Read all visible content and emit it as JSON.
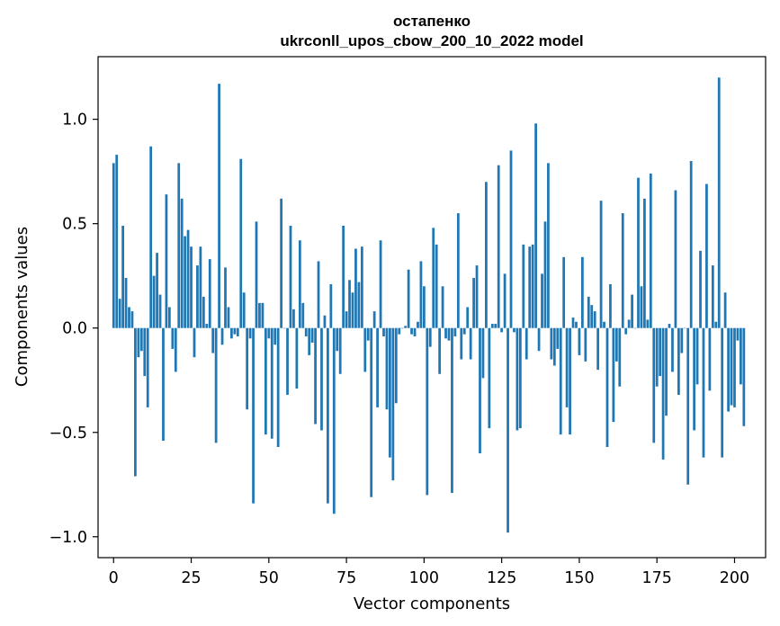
{
  "chart_data": {
    "type": "bar",
    "title": "остапенко",
    "subtitle": "ukrconll_upos_cbow_200_10_2022 model",
    "xlabel": "Vector components",
    "ylabel": "Components values",
    "xlim": [
      -5,
      210
    ],
    "ylim": [
      -1.1,
      1.3
    ],
    "xticks": [
      0,
      25,
      50,
      75,
      100,
      125,
      150,
      175,
      200
    ],
    "xtick_labels": [
      "0",
      "25",
      "50",
      "75",
      "100",
      "125",
      "150",
      "175",
      "200"
    ],
    "yticks": [
      -1.0,
      -0.5,
      0.0,
      0.5,
      1.0
    ],
    "ytick_labels": [
      "−1.0",
      "−0.5",
      "0.0",
      "0.5",
      "1.0"
    ],
    "grid": false,
    "legend": "none",
    "color": "#1f77b4",
    "values": [
      0.79,
      0.83,
      0.14,
      0.49,
      0.24,
      0.1,
      0.08,
      -0.71,
      -0.14,
      -0.11,
      -0.23,
      -0.38,
      0.87,
      0.25,
      0.36,
      0.16,
      -0.54,
      0.64,
      0.1,
      -0.1,
      -0.21,
      0.79,
      0.62,
      0.44,
      0.47,
      0.39,
      -0.14,
      0.3,
      0.39,
      0.15,
      0.02,
      0.33,
      -0.12,
      -0.55,
      1.17,
      -0.08,
      0.29,
      0.1,
      -0.05,
      -0.03,
      -0.04,
      0.81,
      0.17,
      -0.39,
      -0.05,
      -0.84,
      0.51,
      0.12,
      0.12,
      -0.51,
      -0.05,
      -0.53,
      -0.08,
      -0.57,
      0.62,
      0.0,
      -0.32,
      0.49,
      0.09,
      -0.29,
      0.42,
      0.12,
      -0.04,
      -0.13,
      -0.07,
      -0.46,
      0.32,
      -0.49,
      0.06,
      -0.84,
      0.21,
      -0.89,
      -0.11,
      -0.22,
      0.49,
      0.08,
      0.23,
      0.17,
      0.38,
      0.22,
      0.39,
      -0.21,
      -0.06,
      -0.81,
      0.08,
      -0.38,
      0.42,
      -0.04,
      -0.39,
      -0.62,
      -0.73,
      -0.36,
      -0.03,
      0.0,
      0.01,
      0.28,
      -0.03,
      -0.04,
      0.03,
      0.32,
      0.2,
      -0.8,
      -0.09,
      0.48,
      0.4,
      -0.22,
      0.2,
      -0.05,
      -0.06,
      -0.79,
      -0.04,
      0.55,
      -0.15,
      -0.03,
      0.1,
      -0.15,
      0.24,
      0.3,
      -0.6,
      -0.24,
      0.7,
      -0.48,
      0.02,
      0.02,
      0.78,
      -0.02,
      0.26,
      -0.98,
      0.85,
      -0.02,
      -0.49,
      -0.48,
      0.4,
      -0.15,
      0.39,
      0.4,
      0.98,
      -0.11,
      0.26,
      0.51,
      0.79,
      -0.15,
      -0.18,
      -0.1,
      -0.51,
      0.34,
      -0.38,
      -0.51,
      0.05,
      0.03,
      -0.13,
      0.34,
      -0.16,
      0.15,
      0.11,
      0.08,
      -0.2,
      0.61,
      0.03,
      -0.57,
      0.21,
      -0.45,
      -0.16,
      -0.28,
      0.55,
      -0.03,
      0.04,
      0.16,
      0.0,
      0.72,
      0.2,
      0.62,
      0.04,
      0.74,
      -0.55,
      -0.28,
      -0.23,
      -0.63,
      -0.42,
      0.02,
      -0.21,
      0.66,
      -0.32,
      -0.12,
      0.0,
      -0.75,
      0.8,
      -0.49,
      -0.27,
      0.37,
      -0.62,
      0.69,
      -0.3,
      0.3,
      0.03,
      1.2,
      -0.62,
      0.17,
      -0.4,
      -0.37,
      -0.38,
      -0.06,
      -0.27,
      -0.47
    ]
  }
}
